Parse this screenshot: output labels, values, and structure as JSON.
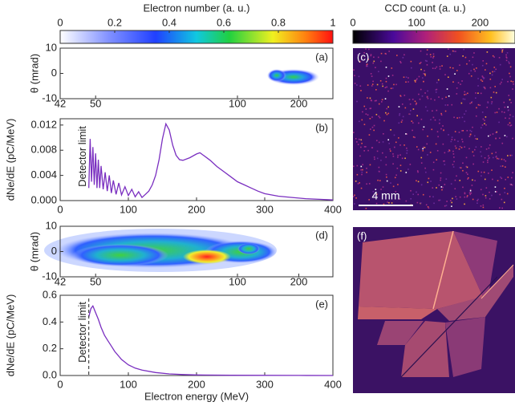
{
  "chart_data": [
    {
      "type": "colorbar",
      "title": "Electron number (a. u.)",
      "xlim": [
        0,
        1
      ],
      "xticks": [
        0,
        0.2,
        0.4,
        0.6,
        0.8,
        1
      ]
    },
    {
      "type": "colorbar-ccd",
      "title": "CCD count (a. u.)",
      "xlim": [
        0,
        255
      ],
      "xticks": [
        0,
        100,
        200
      ]
    },
    {
      "type": "spectrogram",
      "label": "(a)",
      "ylabel": "θ (mrad)",
      "ylim": [
        -10,
        10
      ],
      "yticks": [
        10,
        0,
        -10
      ],
      "xticks": [
        42,
        50,
        100,
        200
      ]
    },
    {
      "type": "line",
      "label": "(b)",
      "ylabel": "dNe/dE (pC/MeV)",
      "annotation": "Detector limit",
      "color": "#7a2fc0",
      "xlim": [
        0,
        400
      ],
      "xticks": [
        0,
        100,
        200,
        300,
        400
      ],
      "ylim": [
        0,
        0.013
      ],
      "yticks": [
        {
          "value": 0,
          "label": "0.000"
        },
        {
          "value": 0.004,
          "label": "0.004"
        },
        {
          "value": 0.008,
          "label": "0.008"
        },
        {
          "value": 0.012,
          "label": "0.012"
        }
      ],
      "x": [
        42,
        44,
        46,
        48,
        50,
        52,
        54,
        56,
        58,
        60,
        63,
        66,
        69,
        72,
        75,
        78,
        82,
        86,
        90,
        95,
        100,
        105,
        110,
        115,
        120,
        125,
        130,
        135,
        140,
        145,
        150,
        155,
        160,
        165,
        170,
        175,
        180,
        190,
        200,
        205,
        210,
        220,
        230,
        240,
        250,
        260,
        270,
        280,
        290,
        300,
        320,
        340,
        360,
        380,
        400
      ],
      "values": [
        0.002,
        0.0098,
        0.003,
        0.0085,
        0.0025,
        0.0075,
        0.002,
        0.0065,
        0.002,
        0.0055,
        0.0018,
        0.0045,
        0.0015,
        0.004,
        0.0012,
        0.0032,
        0.001,
        0.0028,
        0.0009,
        0.0022,
        0.0008,
        0.0018,
        0.0006,
        0.0014,
        0.0005,
        0.001,
        0.0015,
        0.0025,
        0.004,
        0.0065,
        0.0098,
        0.0122,
        0.0112,
        0.0088,
        0.0072,
        0.0065,
        0.0064,
        0.0068,
        0.0074,
        0.0076,
        0.0072,
        0.0064,
        0.0054,
        0.0046,
        0.0038,
        0.003,
        0.0025,
        0.002,
        0.0015,
        0.0011,
        0.0007,
        0.0005,
        0.0003,
        0.0002,
        0.0001
      ]
    },
    {
      "type": "ccd",
      "label": "(c)",
      "scalebar": "4 mm"
    },
    {
      "type": "spectrogram",
      "label": "(d)",
      "ylabel": "θ (mrad)",
      "ylim": [
        -10,
        10
      ],
      "yticks": [
        10,
        0,
        -10
      ],
      "xticks": [
        42,
        50,
        100,
        200
      ]
    },
    {
      "type": "line",
      "label": "(e)",
      "ylabel": "dNe/dE (pC/MeV)",
      "xlabel": "Electron energy (MeV)",
      "annotation": "Detector limit",
      "color": "#7a2fc0",
      "xlim": [
        0,
        400
      ],
      "xticks": [
        0,
        100,
        200,
        300,
        400
      ],
      "ylim": [
        0,
        0.6
      ],
      "yticks": [
        {
          "value": 0,
          "label": "0.0"
        },
        {
          "value": 0.2,
          "label": "0.2"
        },
        {
          "value": 0.4,
          "label": "0.4"
        },
        {
          "value": 0.6,
          "label": "0.6"
        }
      ],
      "x": [
        42,
        45,
        48,
        52,
        56,
        60,
        65,
        70,
        75,
        80,
        90,
        100,
        110,
        120,
        140,
        160,
        180,
        200,
        250,
        300,
        350,
        400
      ],
      "values": [
        0.44,
        0.5,
        0.52,
        0.47,
        0.42,
        0.36,
        0.3,
        0.26,
        0.22,
        0.18,
        0.12,
        0.08,
        0.055,
        0.04,
        0.022,
        0.012,
        0.007,
        0.004,
        0.002,
        0.001,
        0.0005,
        0
      ]
    },
    {
      "type": "phosphor",
      "label": "(f)"
    }
  ]
}
